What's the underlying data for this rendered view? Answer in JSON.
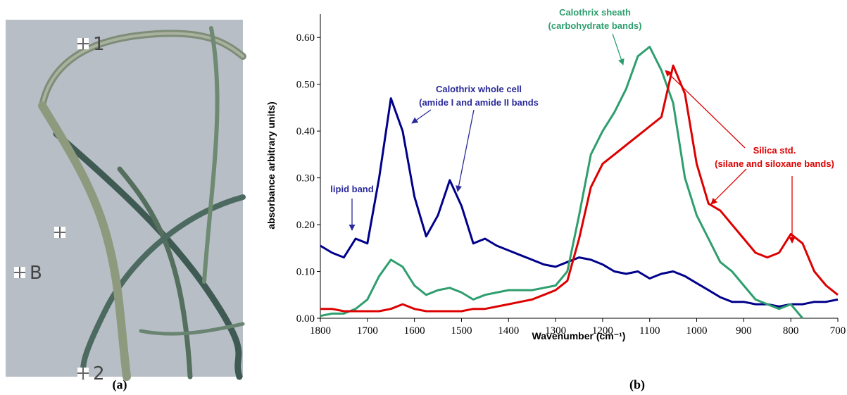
{
  "panel_a": {
    "markers": [
      "1",
      "B",
      "2"
    ],
    "caption": "(a)"
  },
  "chart_data": {
    "type": "line",
    "caption": "(b)",
    "xlabel": "Wavenumber (cm⁻¹)",
    "ylabel": "absorbance arbitrary units)",
    "xlim": [
      1800,
      700
    ],
    "ylim": [
      0,
      0.65
    ],
    "xticks": [
      1800,
      1700,
      1600,
      1500,
      1400,
      1300,
      1200,
      1100,
      1000,
      900,
      800,
      700
    ],
    "yticks": [
      {
        "value": 0,
        "label": "0.00"
      },
      {
        "value": 0.1,
        "label": "0.10"
      },
      {
        "value": 0.2,
        "label": "0.20"
      },
      {
        "value": 0.3,
        "label": "0.30"
      },
      {
        "value": 0.4,
        "label": "0.40"
      },
      {
        "value": 0.5,
        "label": "0.50"
      },
      {
        "value": 0.6,
        "label": "0.60"
      }
    ],
    "x": [
      1800,
      1775,
      1750,
      1725,
      1700,
      1675,
      1650,
      1625,
      1600,
      1575,
      1550,
      1525,
      1500,
      1475,
      1450,
      1425,
      1400,
      1375,
      1350,
      1325,
      1300,
      1275,
      1250,
      1225,
      1200,
      1175,
      1150,
      1125,
      1100,
      1075,
      1050,
      1025,
      1000,
      975,
      950,
      925,
      900,
      875,
      850,
      825,
      800,
      775,
      750,
      725,
      700
    ],
    "series": [
      {
        "color": "#00008b",
        "values": [
          0.155,
          0.14,
          0.13,
          0.17,
          0.16,
          0.3,
          0.47,
          0.4,
          0.26,
          0.175,
          0.22,
          0.295,
          0.24,
          0.16,
          0.17,
          0.155,
          0.145,
          0.135,
          0.125,
          0.115,
          0.11,
          0.12,
          0.13,
          0.125,
          0.115,
          0.1,
          0.095,
          0.1,
          0.085,
          0.095,
          0.1,
          0.09,
          0.075,
          0.06,
          0.045,
          0.035,
          0.035,
          0.03,
          0.03,
          0.025,
          0.03,
          0.03,
          0.035,
          0.035,
          0.04
        ]
      },
      {
        "color": "#2e9e6e",
        "values": [
          0.005,
          0.01,
          0.01,
          0.02,
          0.04,
          0.09,
          0.125,
          0.11,
          0.07,
          0.05,
          0.06,
          0.065,
          0.055,
          0.04,
          0.05,
          0.055,
          0.06,
          0.06,
          0.06,
          0.065,
          0.07,
          0.1,
          0.22,
          0.35,
          0.4,
          0.44,
          0.49,
          0.56,
          0.58,
          0.53,
          0.46,
          0.3,
          0.22,
          0.17,
          0.12,
          0.1,
          0.07,
          0.04,
          0.03,
          0.02,
          0.03,
          0.0,
          null,
          null,
          null
        ]
      },
      {
        "color": "#dd0000",
        "values": [
          0.02,
          0.02,
          0.015,
          0.015,
          0.015,
          0.015,
          0.02,
          0.03,
          0.02,
          0.015,
          0.015,
          0.015,
          0.015,
          0.02,
          0.02,
          0.025,
          0.03,
          0.035,
          0.04,
          0.05,
          0.06,
          0.08,
          0.17,
          0.28,
          0.33,
          0.35,
          0.37,
          0.39,
          0.41,
          0.43,
          0.54,
          0.48,
          0.33,
          0.245,
          0.23,
          0.2,
          0.17,
          0.14,
          0.13,
          0.14,
          0.18,
          0.16,
          0.1,
          0.07,
          0.05
        ]
      }
    ],
    "annotations": [
      {
        "color": "#2e9e6e",
        "lines": [
          "Calothrix sheath",
          "(carbohydrate bands)"
        ]
      },
      {
        "color": "#2a2a9a",
        "lines": [
          "Calothrix whole cell",
          "(amide I and amide II bands"
        ]
      },
      {
        "color": "#2a2a9a",
        "lines": [
          "lipid band"
        ]
      },
      {
        "color": "#dd0000",
        "lines": [
          "Silica std.",
          "(silane and siloxane bands)"
        ]
      }
    ]
  }
}
